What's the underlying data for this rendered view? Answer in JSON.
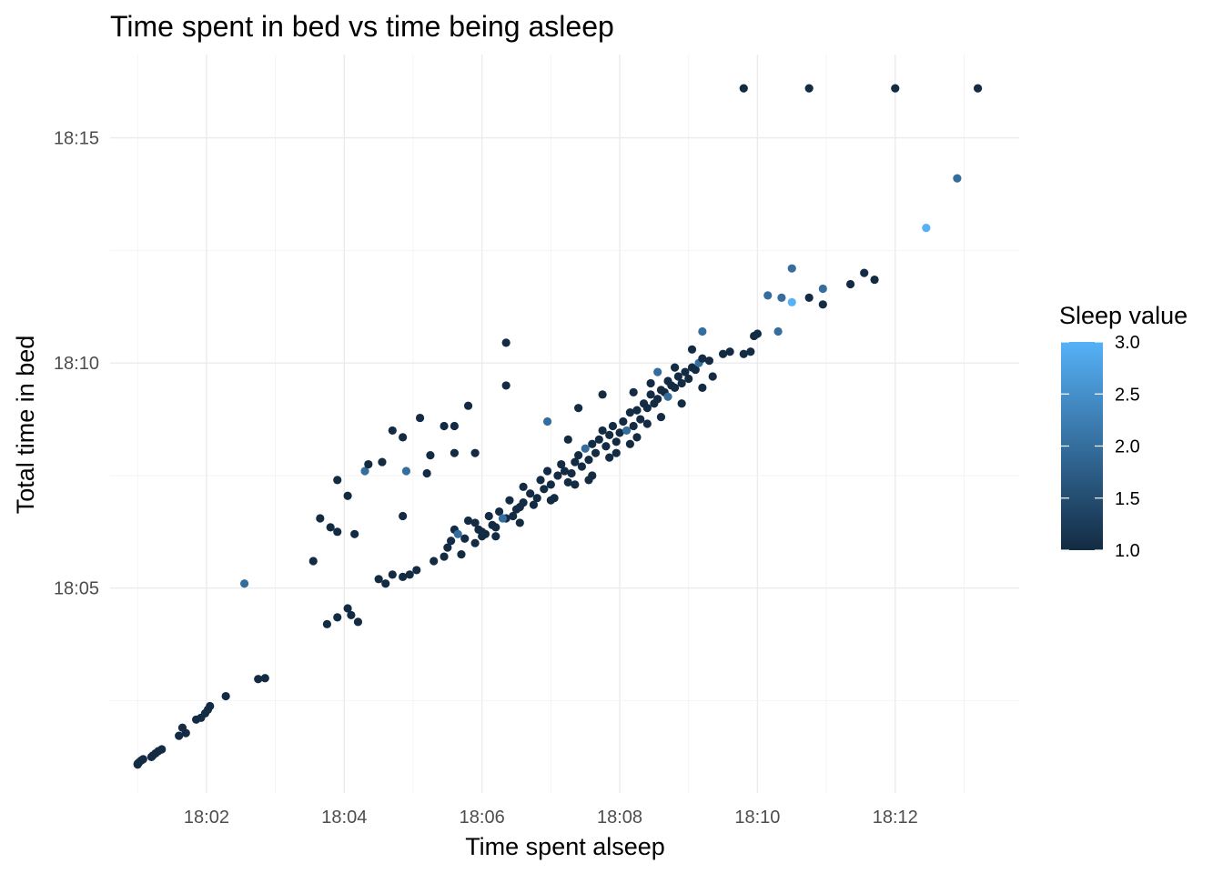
{
  "chart_data": {
    "type": "scatter",
    "title": "Time spent in bed vs time being asleep",
    "xlabel": "Time spent alseep",
    "ylabel": "Total time in bed",
    "x_unit": "minutes after 18:00",
    "y_unit": "minutes after 18:00",
    "xlim": [
      0.6,
      13.8
    ],
    "ylim": [
      0.45,
      16.85
    ],
    "x_ticks": [
      {
        "value": 2,
        "label": "18:02"
      },
      {
        "value": 4,
        "label": "18:04"
      },
      {
        "value": 6,
        "label": "18:06"
      },
      {
        "value": 8,
        "label": "18:08"
      },
      {
        "value": 10,
        "label": "18:10"
      },
      {
        "value": 12,
        "label": "18:12"
      }
    ],
    "y_ticks": [
      {
        "value": 5,
        "label": "18:05"
      },
      {
        "value": 10,
        "label": "18:10"
      },
      {
        "value": 15,
        "label": "18:15"
      }
    ],
    "grid": true,
    "legend": {
      "title": "Sleep value",
      "position": "right",
      "type": "colorbar",
      "min": 1.0,
      "max": 3.0,
      "ticks": [
        {
          "value": 1.0,
          "label": "1.0"
        },
        {
          "value": 1.5,
          "label": "1.5"
        },
        {
          "value": 2.0,
          "label": "2.0"
        },
        {
          "value": 2.5,
          "label": "2.5"
        },
        {
          "value": 3.0,
          "label": "3.0"
        }
      ],
      "color_low": "#132B43",
      "color_high": "#56B1F7"
    },
    "points": [
      [
        1.0,
        1.1,
        1
      ],
      [
        1.02,
        1.13,
        1
      ],
      [
        1.05,
        1.17,
        1
      ],
      [
        1.08,
        1.2,
        1
      ],
      [
        1.0,
        1.08,
        1
      ],
      [
        1.22,
        1.28,
        1
      ],
      [
        1.26,
        1.33,
        1
      ],
      [
        1.3,
        1.38,
        1
      ],
      [
        1.35,
        1.42,
        1
      ],
      [
        1.2,
        1.25,
        1
      ],
      [
        1.6,
        1.72,
        1
      ],
      [
        1.7,
        1.78,
        1
      ],
      [
        1.65,
        1.9,
        1
      ],
      [
        1.85,
        2.08,
        1
      ],
      [
        1.92,
        2.12,
        1
      ],
      [
        1.98,
        2.22,
        1
      ],
      [
        2.05,
        2.38,
        1
      ],
      [
        2.02,
        2.3,
        1
      ],
      [
        2.28,
        2.6,
        1
      ],
      [
        2.75,
        2.98,
        1
      ],
      [
        2.85,
        3.0,
        1
      ],
      [
        2.55,
        5.1,
        2
      ],
      [
        3.75,
        4.2,
        1
      ],
      [
        3.9,
        4.35,
        1
      ],
      [
        4.05,
        4.55,
        1
      ],
      [
        4.1,
        4.4,
        1
      ],
      [
        4.2,
        4.25,
        1
      ],
      [
        3.55,
        5.6,
        1
      ],
      [
        3.65,
        6.55,
        1
      ],
      [
        3.8,
        6.35,
        1
      ],
      [
        3.9,
        6.25,
        1
      ],
      [
        4.15,
        6.2,
        1
      ],
      [
        3.9,
        7.4,
        1
      ],
      [
        4.05,
        7.05,
        1
      ],
      [
        4.3,
        7.6,
        2
      ],
      [
        4.35,
        7.75,
        1
      ],
      [
        4.55,
        7.8,
        1
      ],
      [
        4.7,
        8.5,
        1
      ],
      [
        4.85,
        8.35,
        1
      ],
      [
        4.9,
        7.6,
        2
      ],
      [
        4.85,
        6.6,
        1
      ],
      [
        5.1,
        8.78,
        1
      ],
      [
        5.25,
        7.95,
        1
      ],
      [
        5.2,
        7.55,
        1
      ],
      [
        5.45,
        8.6,
        1
      ],
      [
        5.6,
        8.6,
        1
      ],
      [
        5.6,
        8.0,
        1
      ],
      [
        5.9,
        8.0,
        1
      ],
      [
        5.8,
        9.05,
        1
      ],
      [
        6.35,
        10.45,
        1
      ],
      [
        6.35,
        9.5,
        1
      ],
      [
        4.5,
        5.2,
        1
      ],
      [
        4.6,
        5.1,
        1
      ],
      [
        4.7,
        5.3,
        1
      ],
      [
        4.85,
        5.25,
        1
      ],
      [
        4.95,
        5.3,
        1
      ],
      [
        5.05,
        5.4,
        1
      ],
      [
        5.3,
        5.6,
        1
      ],
      [
        5.45,
        5.7,
        1
      ],
      [
        5.5,
        5.9,
        1
      ],
      [
        5.55,
        6.05,
        1
      ],
      [
        5.6,
        6.3,
        1
      ],
      [
        5.65,
        6.2,
        2
      ],
      [
        5.75,
        6.1,
        1
      ],
      [
        5.7,
        5.75,
        1
      ],
      [
        5.8,
        6.5,
        1
      ],
      [
        5.9,
        6.45,
        1
      ],
      [
        5.95,
        6.3,
        1
      ],
      [
        6.0,
        6.15,
        1
      ],
      [
        6.05,
        6.2,
        1
      ],
      [
        6.1,
        6.6,
        1
      ],
      [
        6.15,
        6.4,
        1
      ],
      [
        6.2,
        6.35,
        1
      ],
      [
        6.25,
        6.7,
        1
      ],
      [
        6.35,
        6.55,
        1
      ],
      [
        6.45,
        6.6,
        1
      ],
      [
        6.5,
        6.75,
        1
      ],
      [
        6.55,
        6.8,
        1
      ],
      [
        6.6,
        6.9,
        1
      ],
      [
        6.7,
        7.1,
        1
      ],
      [
        6.8,
        7.0,
        1
      ],
      [
        6.85,
        7.4,
        1
      ],
      [
        6.9,
        7.2,
        1
      ],
      [
        7.0,
        7.3,
        1
      ],
      [
        7.05,
        7.0,
        1
      ],
      [
        7.1,
        7.5,
        1
      ],
      [
        7.2,
        7.6,
        1
      ],
      [
        7.25,
        7.35,
        1
      ],
      [
        7.3,
        7.55,
        1
      ],
      [
        7.35,
        7.8,
        1
      ],
      [
        7.4,
        7.95,
        1
      ],
      [
        7.45,
        7.7,
        1
      ],
      [
        7.5,
        8.1,
        2
      ],
      [
        7.55,
        7.85,
        1
      ],
      [
        7.6,
        8.2,
        1
      ],
      [
        7.65,
        8.0,
        1
      ],
      [
        7.7,
        8.3,
        1
      ],
      [
        7.75,
        8.5,
        1
      ],
      [
        7.8,
        8.15,
        1
      ],
      [
        7.85,
        8.4,
        1
      ],
      [
        7.9,
        8.6,
        1
      ],
      [
        7.95,
        8.25,
        1
      ],
      [
        8.0,
        8.45,
        1
      ],
      [
        8.05,
        8.7,
        1
      ],
      [
        8.1,
        8.5,
        2
      ],
      [
        8.15,
        8.9,
        1
      ],
      [
        8.2,
        8.6,
        1
      ],
      [
        8.25,
        8.95,
        1
      ],
      [
        8.3,
        8.75,
        1
      ],
      [
        8.35,
        9.1,
        1
      ],
      [
        8.4,
        9.0,
        1
      ],
      [
        8.45,
        9.3,
        1
      ],
      [
        8.5,
        9.1,
        1
      ],
      [
        8.55,
        9.2,
        1
      ],
      [
        8.6,
        9.4,
        1
      ],
      [
        8.65,
        9.35,
        1
      ],
      [
        8.7,
        9.6,
        1
      ],
      [
        8.75,
        9.5,
        1
      ],
      [
        8.8,
        9.45,
        1
      ],
      [
        8.85,
        9.7,
        1
      ],
      [
        8.9,
        9.55,
        1
      ],
      [
        8.95,
        9.8,
        1
      ],
      [
        9.0,
        9.65,
        1
      ],
      [
        9.05,
        9.9,
        1
      ],
      [
        9.1,
        9.85,
        1
      ],
      [
        9.15,
        10.0,
        2
      ],
      [
        9.2,
        10.1,
        1
      ],
      [
        9.3,
        10.05,
        1
      ],
      [
        8.55,
        9.8,
        2
      ],
      [
        8.8,
        9.9,
        1
      ],
      [
        9.05,
        10.3,
        1
      ],
      [
        9.2,
        10.7,
        2
      ],
      [
        9.5,
        10.2,
        1
      ],
      [
        9.6,
        10.25,
        1
      ],
      [
        9.8,
        10.2,
        1
      ],
      [
        9.9,
        10.25,
        1
      ],
      [
        10.0,
        10.65,
        1
      ],
      [
        9.95,
        10.6,
        1
      ],
      [
        10.3,
        10.7,
        2
      ],
      [
        10.15,
        11.5,
        2
      ],
      [
        10.35,
        11.45,
        2
      ],
      [
        10.5,
        11.35,
        3
      ],
      [
        10.5,
        12.1,
        2
      ],
      [
        10.75,
        11.45,
        1
      ],
      [
        10.95,
        11.65,
        2
      ],
      [
        10.95,
        11.3,
        1
      ],
      [
        11.35,
        11.75,
        1
      ],
      [
        11.55,
        12.0,
        1
      ],
      [
        11.7,
        11.85,
        1
      ],
      [
        12.45,
        13.0,
        3
      ],
      [
        12.9,
        14.1,
        2
      ],
      [
        9.8,
        16.1,
        1
      ],
      [
        10.75,
        16.1,
        1
      ],
      [
        12.0,
        16.1,
        1
      ],
      [
        13.2,
        16.1,
        1
      ],
      [
        6.95,
        8.7,
        2
      ],
      [
        7.25,
        8.3,
        1
      ],
      [
        7.4,
        9.0,
        1
      ],
      [
        7.75,
        9.3,
        1
      ],
      [
        8.2,
        9.35,
        1
      ],
      [
        8.45,
        9.55,
        1
      ],
      [
        6.6,
        7.25,
        1
      ],
      [
        6.4,
        6.95,
        1
      ],
      [
        6.95,
        7.6,
        1
      ],
      [
        7.15,
        7.75,
        1
      ],
      [
        7.6,
        7.5,
        1
      ],
      [
        7.95,
        8.0,
        1
      ],
      [
        8.25,
        8.35,
        1
      ],
      [
        8.4,
        8.65,
        1
      ],
      [
        8.7,
        9.25,
        2
      ],
      [
        6.3,
        6.55,
        2
      ],
      [
        6.0,
        6.25,
        1
      ],
      [
        5.9,
        6.0,
        1
      ],
      [
        6.2,
        6.15,
        1
      ],
      [
        6.55,
        6.45,
        1
      ],
      [
        6.75,
        6.85,
        1
      ],
      [
        7.0,
        6.95,
        1
      ],
      [
        7.35,
        7.3,
        1
      ],
      [
        7.55,
        7.4,
        1
      ],
      [
        7.85,
        7.9,
        1
      ],
      [
        8.15,
        8.2,
        1
      ],
      [
        8.6,
        8.8,
        1
      ],
      [
        8.9,
        9.1,
        1
      ],
      [
        9.2,
        9.45,
        1
      ],
      [
        9.35,
        9.7,
        1
      ]
    ]
  }
}
